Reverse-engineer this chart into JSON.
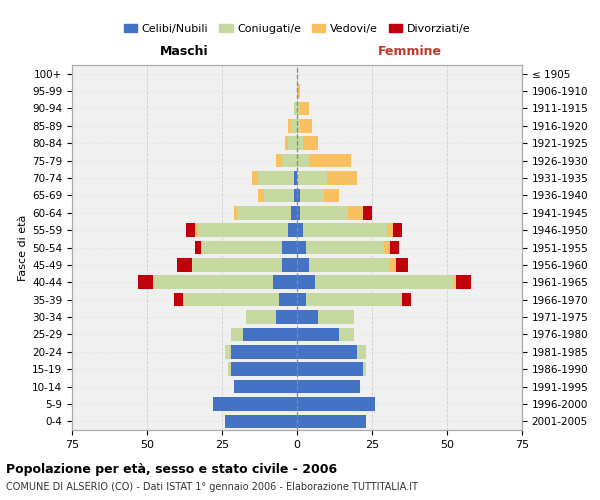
{
  "age_groups": [
    "0-4",
    "5-9",
    "10-14",
    "15-19",
    "20-24",
    "25-29",
    "30-34",
    "35-39",
    "40-44",
    "45-49",
    "50-54",
    "55-59",
    "60-64",
    "65-69",
    "70-74",
    "75-79",
    "80-84",
    "85-89",
    "90-94",
    "95-99",
    "100+"
  ],
  "birth_years": [
    "2001-2005",
    "1996-2000",
    "1991-1995",
    "1986-1990",
    "1981-1985",
    "1976-1980",
    "1971-1975",
    "1966-1970",
    "1961-1965",
    "1956-1960",
    "1951-1955",
    "1946-1950",
    "1941-1945",
    "1936-1940",
    "1931-1935",
    "1926-1930",
    "1921-1925",
    "1916-1920",
    "1911-1915",
    "1906-1910",
    "≤ 1905"
  ],
  "males_celibi": [
    24,
    28,
    21,
    22,
    22,
    18,
    7,
    6,
    8,
    5,
    5,
    3,
    2,
    1,
    1,
    0,
    0,
    0,
    0,
    0,
    0
  ],
  "males_coniugati": [
    0,
    0,
    0,
    1,
    2,
    4,
    10,
    32,
    40,
    30,
    27,
    30,
    18,
    10,
    12,
    5,
    3,
    2,
    1,
    0,
    0
  ],
  "males_vedovi": [
    0,
    0,
    0,
    0,
    0,
    0,
    0,
    0,
    0,
    0,
    0,
    1,
    1,
    2,
    2,
    2,
    1,
    1,
    0,
    0,
    0
  ],
  "males_divorziati": [
    0,
    0,
    0,
    0,
    0,
    0,
    0,
    3,
    5,
    5,
    2,
    3,
    0,
    0,
    0,
    0,
    0,
    0,
    0,
    0,
    0
  ],
  "females_nubili": [
    23,
    26,
    21,
    22,
    20,
    14,
    7,
    3,
    6,
    4,
    3,
    2,
    1,
    1,
    0,
    0,
    0,
    0,
    0,
    0,
    0
  ],
  "females_coniugate": [
    0,
    0,
    0,
    1,
    3,
    5,
    12,
    32,
    46,
    27,
    26,
    28,
    16,
    8,
    10,
    4,
    2,
    1,
    1,
    0,
    0
  ],
  "females_vedove": [
    0,
    0,
    0,
    0,
    0,
    0,
    0,
    0,
    1,
    2,
    2,
    2,
    5,
    5,
    10,
    14,
    5,
    4,
    3,
    1,
    0
  ],
  "females_divorziate": [
    0,
    0,
    0,
    0,
    0,
    0,
    0,
    3,
    5,
    4,
    3,
    3,
    3,
    0,
    0,
    0,
    0,
    0,
    0,
    0,
    0
  ],
  "color_celibi": "#4472c4",
  "color_coniugati": "#c5d9a1",
  "color_vedovi": "#f9c060",
  "color_divorziati": "#c0000a",
  "xlim": 75,
  "title_main": "Popolazione per età, sesso e stato civile - 2006",
  "title_sub": "COMUNE DI ALSERIO (CO) - Dati ISTAT 1° gennaio 2006 - Elaborazione TUTTITALIA.IT",
  "ylabel_left": "Fasce di età",
  "label_maschi": "Maschi",
  "label_femmine": "Femmine",
  "legend_labels": [
    "Celibi/Nubili",
    "Coniugati/e",
    "Vedovi/e",
    "Divorziati/e"
  ],
  "bg_color": "#ffffff",
  "plot_bg_color": "#f0f0f0",
  "grid_color": "#cccccc"
}
